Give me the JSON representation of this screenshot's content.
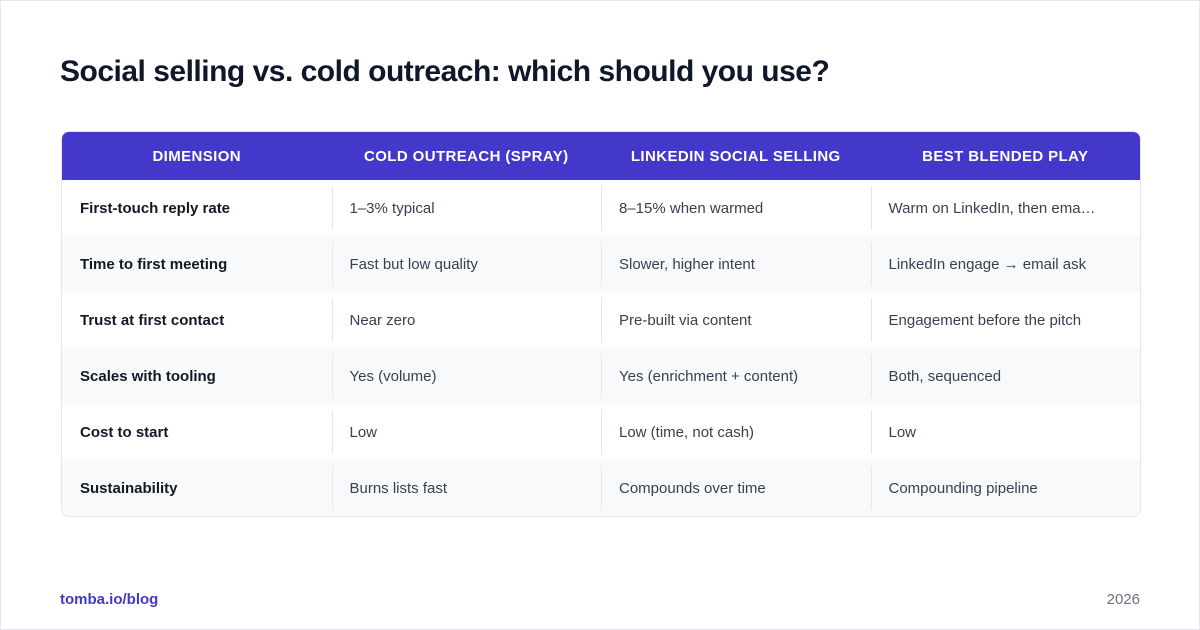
{
  "title": "Social selling vs. cold outreach: which should you use?",
  "table": {
    "header": [
      "DIMENSION",
      "COLD OUTREACH (SPRAY)",
      "LINKEDIN SOCIAL SELLING",
      "BEST BLENDED PLAY"
    ],
    "rows": [
      [
        "First-touch reply rate",
        "1–3% typical",
        "8–15% when warmed",
        "Warm on LinkedIn, then ema…"
      ],
      [
        "Time to first meeting",
        "Fast but low quality",
        "Slower, higher intent",
        "LinkedIn engage → email ask"
      ],
      [
        "Trust at first contact",
        "Near zero",
        "Pre-built via content",
        "Engagement before the pitch"
      ],
      [
        "Scales with tooling",
        "Yes (volume)",
        "Yes (enrichment + content)",
        "Both, sequenced"
      ],
      [
        "Cost to start",
        "Low",
        "Low (time, not cash)",
        "Low"
      ],
      [
        "Sustainability",
        "Burns lists fast",
        "Compounds over time",
        "Compounding pipeline"
      ]
    ]
  },
  "footer": {
    "source": "tomba.io/blog",
    "year": "2026"
  }
}
